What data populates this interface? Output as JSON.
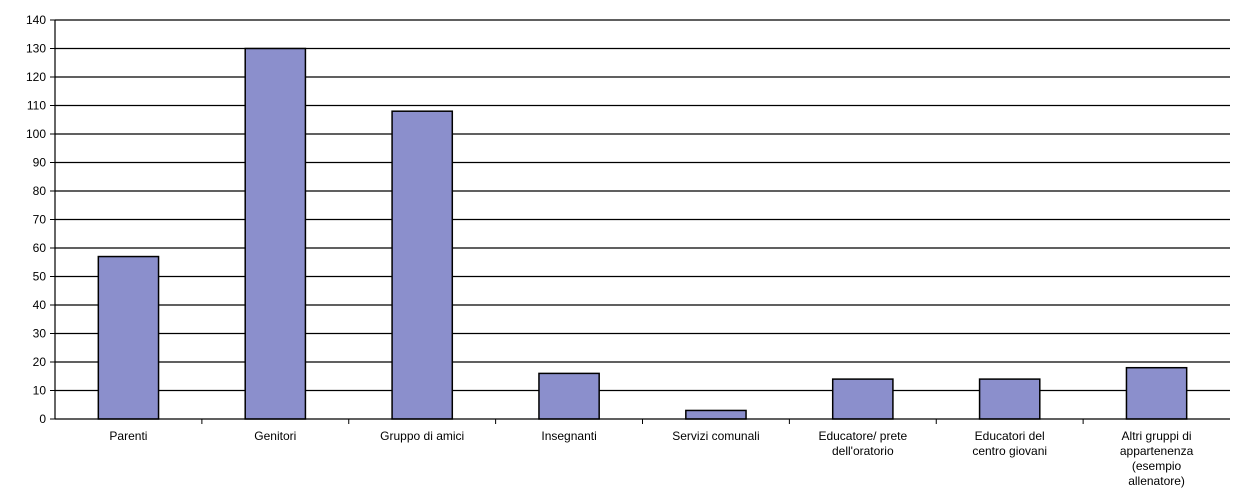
{
  "chart_data": {
    "type": "bar",
    "title": "",
    "xlabel": "",
    "ylabel": "",
    "ylim": [
      0,
      140
    ],
    "y_ticks": [
      0,
      10,
      20,
      30,
      40,
      50,
      60,
      70,
      80,
      90,
      100,
      110,
      120,
      130,
      140
    ],
    "grid": true,
    "legend": "none",
    "bar_color": "#8b8fcc",
    "categories": [
      [
        "Parenti"
      ],
      [
        "Genitori"
      ],
      [
        "Gruppo di amici"
      ],
      [
        "Insegnanti"
      ],
      [
        "Servizi comunali"
      ],
      [
        "Educatore/ prete",
        "dell'oratorio"
      ],
      [
        "Educatori del",
        "centro giovani"
      ],
      [
        "Altri gruppi di",
        "appartenenza",
        "(esempio",
        "allenatore)"
      ]
    ],
    "values": [
      57,
      130,
      108,
      16,
      3,
      14,
      14,
      18
    ]
  }
}
